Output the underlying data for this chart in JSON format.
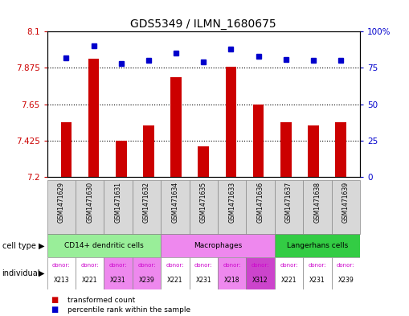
{
  "title": "GDS5349 / ILMN_1680675",
  "samples": [
    "GSM1471629",
    "GSM1471630",
    "GSM1471631",
    "GSM1471632",
    "GSM1471634",
    "GSM1471635",
    "GSM1471633",
    "GSM1471636",
    "GSM1471637",
    "GSM1471638",
    "GSM1471639"
  ],
  "transformed_counts": [
    7.54,
    7.93,
    7.425,
    7.52,
    7.82,
    7.39,
    7.88,
    7.65,
    7.54,
    7.52,
    7.54
  ],
  "percentile_ranks": [
    82,
    90,
    78,
    80,
    85,
    79,
    88,
    83,
    81,
    80,
    80
  ],
  "ylim_left": [
    7.2,
    8.1
  ],
  "ylim_right": [
    0,
    100
  ],
  "yticks_left": [
    7.2,
    7.425,
    7.65,
    7.875,
    8.1
  ],
  "yticks_right": [
    0,
    25,
    50,
    75,
    100
  ],
  "ytick_labels_left": [
    "7.2",
    "7.425",
    "7.65",
    "7.875",
    "8.1"
  ],
  "ytick_labels_right": [
    "0",
    "25",
    "50",
    "75",
    "100%"
  ],
  "bar_color": "#cc0000",
  "dot_color": "#0000cc",
  "cell_type_groups": [
    {
      "label": "CD14+ dendritic cells",
      "start": 0,
      "end": 3,
      "color": "#99ee99"
    },
    {
      "label": "Macrophages",
      "start": 4,
      "end": 7,
      "color": "#ee88ee"
    },
    {
      "label": "Langerhans cells",
      "start": 8,
      "end": 10,
      "color": "#33cc44"
    }
  ],
  "individual_donors": [
    {
      "donor": "X213",
      "bg": "#ffffff",
      "text_color": "#cc00cc"
    },
    {
      "donor": "X221",
      "bg": "#ffffff",
      "text_color": "#cc00cc"
    },
    {
      "donor": "X231",
      "bg": "#ee88ee",
      "text_color": "#cc00cc"
    },
    {
      "donor": "X239",
      "bg": "#ee88ee",
      "text_color": "#cc00cc"
    },
    {
      "donor": "X221",
      "bg": "#ffffff",
      "text_color": "#cc00cc"
    },
    {
      "donor": "X231",
      "bg": "#ffffff",
      "text_color": "#cc00cc"
    },
    {
      "donor": "X218",
      "bg": "#ee88ee",
      "text_color": "#cc00cc"
    },
    {
      "donor": "X312",
      "bg": "#cc44cc",
      "text_color": "#cc00cc"
    },
    {
      "donor": "X221",
      "bg": "#ffffff",
      "text_color": "#cc00cc"
    },
    {
      "donor": "X231",
      "bg": "#ffffff",
      "text_color": "#cc00cc"
    },
    {
      "donor": "X239",
      "bg": "#ffffff",
      "text_color": "#cc00cc"
    }
  ],
  "legend_items": [
    {
      "label": "transformed count",
      "color": "#cc0000"
    },
    {
      "label": "percentile rank within the sample",
      "color": "#0000cc"
    }
  ],
  "title_fontsize": 10,
  "bar_width": 0.4
}
